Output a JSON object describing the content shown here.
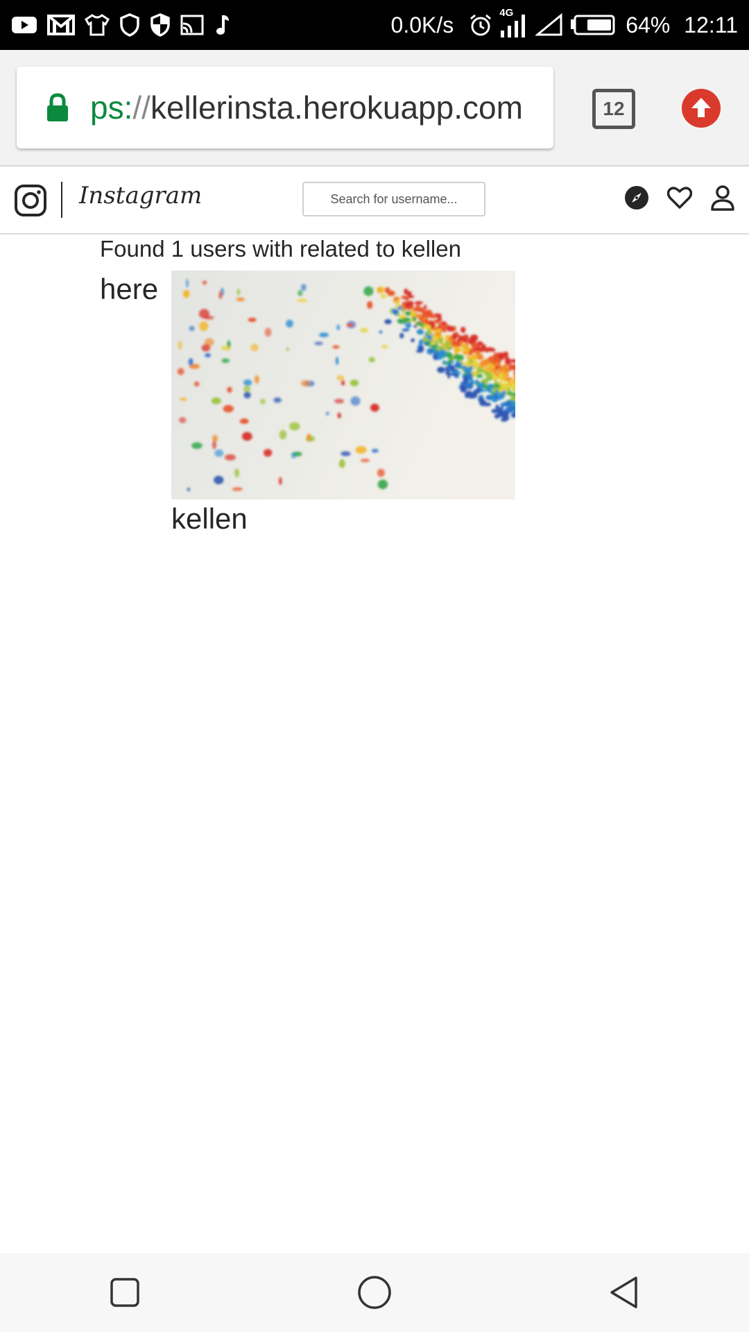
{
  "status_bar": {
    "net_speed": "0.0K/s",
    "network_type": "4G",
    "battery": "64%",
    "time": "12:11"
  },
  "browser": {
    "url_scheme": "ps:",
    "url_separator": "//",
    "url_host": "kellerinsta.herokuapp.com",
    "tab_count": "12",
    "accent_secure": "#0b8a3e",
    "update_color": "#d93a2c"
  },
  "header": {
    "brand": "Instagram",
    "search_placeholder": "Search for username...",
    "icons": [
      "instagram-logo-icon",
      "compass-icon",
      "heart-icon",
      "profile-icon"
    ]
  },
  "results": {
    "summary": "Found 1 users with related to kellen",
    "here": "here",
    "username": "kellen"
  },
  "nav_bar": {
    "icons": [
      "recents-icon",
      "home-icon",
      "back-icon"
    ]
  }
}
